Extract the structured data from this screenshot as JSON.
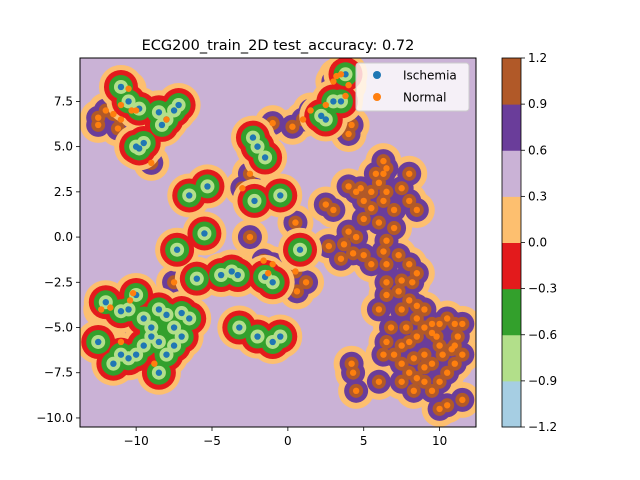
{
  "chart_data": {
    "type": "scatter",
    "subtype": "decision-boundary-contour",
    "title": "ECG200_train_2D  test_accuracy: 0.72",
    "xlabel": "",
    "ylabel": "",
    "xlim": [
      -13.7,
      12.4
    ],
    "ylim": [
      -10.5,
      9.9
    ],
    "x_ticks": [
      -10,
      -5,
      0,
      5,
      10
    ],
    "y_ticks": [
      -10.0,
      -7.5,
      -5.0,
      -2.5,
      0.0,
      2.5,
      5.0,
      7.5
    ],
    "grid": false,
    "legend_placement": "top-right",
    "background_level_color": "#cab2d6",
    "colorbar": {
      "ticks": [
        "-1.2",
        "-0.9",
        "-0.6",
        "-0.3",
        "0.0",
        "0.3",
        "0.6",
        "0.9",
        "1.2"
      ],
      "levels": [
        -1.2,
        -0.9,
        -0.6,
        -0.3,
        0.0,
        0.3,
        0.6,
        0.9,
        1.2
      ],
      "colors": [
        "#a6cee3",
        "#b2df8a",
        "#33a02c",
        "#e31a1c",
        "#fdbf6f",
        "#cab2d6",
        "#6a3d9a",
        "#b15928"
      ]
    },
    "series": [
      {
        "name": "Ischemia",
        "color": "#1f77b4",
        "points": [
          [
            -11.0,
            8.3
          ],
          [
            -10.5,
            7.5
          ],
          [
            -9.8,
            7.1
          ],
          [
            -8.5,
            6.9
          ],
          [
            -7.5,
            7.0
          ],
          [
            -7.2,
            7.3
          ],
          [
            -8.0,
            6.5
          ],
          [
            -8.3,
            6.2
          ],
          [
            -9.5,
            5.2
          ],
          [
            -9.8,
            4.9
          ],
          [
            -10.0,
            5.0
          ],
          [
            -6.5,
            2.3
          ],
          [
            -5.3,
            2.8
          ],
          [
            -5.5,
            0.2
          ],
          [
            -7.3,
            -0.7
          ],
          [
            -4.4,
            -2.1
          ],
          [
            -3.7,
            -1.9
          ],
          [
            -3.3,
            -2.1
          ],
          [
            -2.3,
            5.5
          ],
          [
            -2.0,
            5.0
          ],
          [
            -1.5,
            4.4
          ],
          [
            -0.5,
            2.3
          ],
          [
            -2.2,
            2.0
          ],
          [
            2.2,
            6.7
          ],
          [
            2.5,
            6.5
          ],
          [
            3.0,
            7.5
          ],
          [
            3.5,
            7.5
          ],
          [
            3.8,
            9.0
          ],
          [
            0.8,
            -0.7
          ],
          [
            -1.0,
            -2.5
          ],
          [
            -1.5,
            -2.2
          ],
          [
            -6.0,
            -2.3
          ],
          [
            -12.0,
            -3.6
          ],
          [
            -11.0,
            -4.1
          ],
          [
            -10.5,
            -4.0
          ],
          [
            -10.0,
            -3.2
          ],
          [
            -9.5,
            -4.5
          ],
          [
            -9.0,
            -5.0
          ],
          [
            -8.5,
            -4.0
          ],
          [
            -8.0,
            -4.3
          ],
          [
            -7.0,
            -4.2
          ],
          [
            -9.0,
            -5.5
          ],
          [
            -8.5,
            -5.8
          ],
          [
            -7.5,
            -6.0
          ],
          [
            -9.5,
            -6.0
          ],
          [
            -10.0,
            -6.5
          ],
          [
            -10.5,
            -6.7
          ],
          [
            -8.0,
            -6.5
          ],
          [
            -11.0,
            -6.5
          ],
          [
            -12.5,
            -5.8
          ],
          [
            -11.5,
            -7.0
          ],
          [
            -8.5,
            -7.5
          ],
          [
            -7.0,
            -5.5
          ],
          [
            -7.5,
            -5.0
          ],
          [
            -6.5,
            -4.5
          ],
          [
            -3.2,
            -5.0
          ],
          [
            -2.0,
            -5.5
          ],
          [
            -1.0,
            -5.8
          ],
          [
            -0.5,
            -5.5
          ]
        ]
      },
      {
        "name": "Normal",
        "color": "#ff7f0e",
        "points": [
          [
            -10.5,
            8.2
          ],
          [
            -11.0,
            7.3
          ],
          [
            -12.0,
            7.0
          ],
          [
            -11.5,
            6.8
          ],
          [
            -12.5,
            6.6
          ],
          [
            -11.0,
            6.5
          ],
          [
            -10.3,
            7.0
          ],
          [
            -12.5,
            6.2
          ],
          [
            -11.2,
            6.0
          ],
          [
            -10.0,
            7.0
          ],
          [
            -8.0,
            6.5
          ],
          [
            -9.0,
            4.1
          ],
          [
            -1.0,
            6.3
          ],
          [
            0.3,
            6.1
          ],
          [
            -2.5,
            3.5
          ],
          [
            -3.0,
            2.7
          ],
          [
            0.5,
            0.8
          ],
          [
            -2.5,
            0.0
          ],
          [
            -1.6,
            -1.3
          ],
          [
            -1.3,
            -2.0
          ],
          [
            -1.0,
            -1.5
          ],
          [
            0.5,
            -1.9
          ],
          [
            1.2,
            -2.5
          ],
          [
            0.6,
            -3.0
          ],
          [
            -7.5,
            -2.5
          ],
          [
            -11.7,
            -3.9
          ],
          [
            -12.3,
            -4.0
          ],
          [
            -10.4,
            -3.5
          ],
          [
            -10.2,
            -3.1
          ],
          [
            -11.0,
            -5.8
          ],
          [
            -8.8,
            -7.0
          ],
          [
            3.0,
            8.6
          ],
          [
            3.2,
            8.9
          ],
          [
            3.5,
            9.0
          ],
          [
            4.0,
            8.4
          ],
          [
            3.8,
            7.8
          ],
          [
            4.2,
            6.2
          ],
          [
            4.0,
            5.7
          ],
          [
            2.5,
            7.3
          ],
          [
            1.5,
            7.0
          ],
          [
            1.0,
            6.5
          ],
          [
            2.5,
            1.8
          ],
          [
            3.0,
            1.5
          ],
          [
            4.0,
            2.8
          ],
          [
            4.5,
            2.5
          ],
          [
            4.8,
            2.7
          ],
          [
            5.5,
            2.5
          ],
          [
            5.0,
            2.0
          ],
          [
            5.5,
            1.6
          ],
          [
            6.0,
            3.0
          ],
          [
            6.5,
            2.5
          ],
          [
            6.3,
            2.0
          ],
          [
            7.0,
            1.5
          ],
          [
            7.5,
            2.7
          ],
          [
            8.0,
            3.5
          ],
          [
            8.0,
            2.0
          ],
          [
            8.5,
            1.5
          ],
          [
            5.8,
            3.5
          ],
          [
            6.5,
            3.8
          ],
          [
            6.3,
            4.2
          ],
          [
            6.3,
            3.5
          ],
          [
            6.0,
            0.8
          ],
          [
            5.0,
            1.0
          ],
          [
            4.5,
            0.0
          ],
          [
            4.0,
            0.3
          ],
          [
            3.7,
            -0.4
          ],
          [
            2.7,
            -0.5
          ],
          [
            3.5,
            -1.2
          ],
          [
            4.3,
            -0.9
          ],
          [
            5.0,
            -1.0
          ],
          [
            5.5,
            -1.5
          ],
          [
            6.3,
            -0.8
          ],
          [
            6.5,
            -0.2
          ],
          [
            7.0,
            0.5
          ],
          [
            7.3,
            -1.0
          ],
          [
            8.0,
            -1.5
          ],
          [
            8.5,
            -2.0
          ],
          [
            6.5,
            -1.5
          ],
          [
            7.5,
            -2.4
          ],
          [
            8.2,
            -2.5
          ],
          [
            6.5,
            -2.5
          ],
          [
            7.3,
            -3.0
          ],
          [
            8.0,
            -3.5
          ],
          [
            8.5,
            -3.8
          ],
          [
            9.0,
            -4.0
          ],
          [
            6.0,
            -4.0
          ],
          [
            6.5,
            -3.2
          ],
          [
            7.5,
            -4.0
          ],
          [
            8.5,
            -4.5
          ],
          [
            9.0,
            -5.0
          ],
          [
            9.5,
            -4.8
          ],
          [
            10.0,
            -4.8
          ],
          [
            10.5,
            -4.5
          ],
          [
            11.0,
            -4.8
          ],
          [
            11.5,
            -4.8
          ],
          [
            9.5,
            -5.3
          ],
          [
            8.5,
            -5.5
          ],
          [
            8.0,
            -5.8
          ],
          [
            7.5,
            -6.0
          ],
          [
            6.5,
            -5.8
          ],
          [
            6.3,
            -6.5
          ],
          [
            7.0,
            -6.5
          ],
          [
            7.5,
            -7.0
          ],
          [
            8.0,
            -7.5
          ],
          [
            8.5,
            -7.8
          ],
          [
            9.0,
            -8.0
          ],
          [
            10.0,
            -8.0
          ],
          [
            10.5,
            -7.5
          ],
          [
            11.0,
            -7.0
          ],
          [
            11.5,
            -6.5
          ],
          [
            10.8,
            -6.2
          ],
          [
            10.0,
            -6.0
          ],
          [
            9.0,
            -6.5
          ],
          [
            8.3,
            -8.5
          ],
          [
            9.5,
            -8.5
          ],
          [
            10.5,
            -9.3
          ],
          [
            11.5,
            -9.0
          ],
          [
            10.0,
            -9.5
          ],
          [
            4.2,
            -7.0
          ],
          [
            4.3,
            -7.5
          ],
          [
            4.5,
            -8.5
          ],
          [
            6.0,
            -8.0
          ],
          [
            7.5,
            -8.0
          ],
          [
            9.5,
            -7.0
          ],
          [
            9.0,
            -7.2
          ],
          [
            10.2,
            -6.5
          ],
          [
            11.2,
            -5.5
          ],
          [
            11.0,
            -6.0
          ],
          [
            8.3,
            -6.7
          ],
          [
            6.8,
            -5.0
          ],
          [
            7.8,
            -5.0
          ],
          [
            9.8,
            -5.5
          ]
        ]
      }
    ]
  }
}
